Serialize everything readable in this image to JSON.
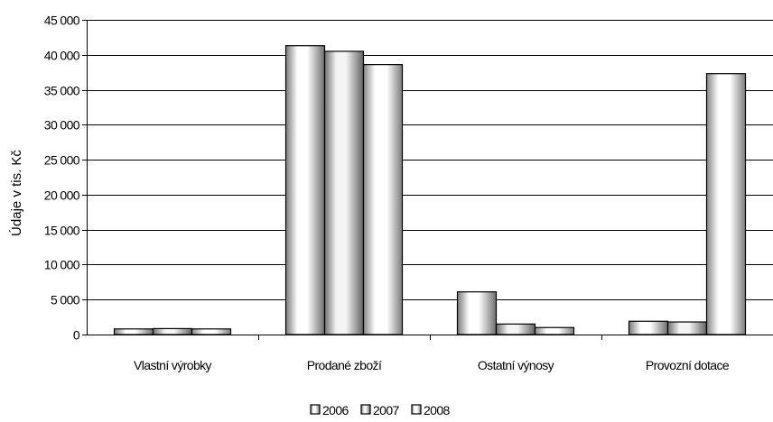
{
  "chart_data": {
    "type": "bar",
    "title": "",
    "xlabel": "",
    "ylabel": "Údaje v tis. Kč",
    "ylim": [
      0,
      45000
    ],
    "yticks": [
      0,
      5000,
      10000,
      15000,
      20000,
      25000,
      30000,
      35000,
      40000,
      45000
    ],
    "ytick_labels": [
      "0",
      "5 000",
      "10 000",
      "15 000",
      "20 000",
      "25 000",
      "30 000",
      "35 000",
      "40 000",
      "45 000"
    ],
    "categories": [
      "Vlastní výrobky",
      "Prodané zboží",
      "Ostatní výnosy",
      "Provozní dotace"
    ],
    "series": [
      {
        "name": "2006",
        "values": [
          800,
          41300,
          6100,
          1900
        ]
      },
      {
        "name": "2007",
        "values": [
          850,
          40500,
          1500,
          1800
        ]
      },
      {
        "name": "2008",
        "values": [
          800,
          38600,
          1000,
          37300
        ]
      }
    ],
    "grid": true,
    "legend_position": "bottom",
    "bar_style": "3d-cylinder-gray"
  }
}
